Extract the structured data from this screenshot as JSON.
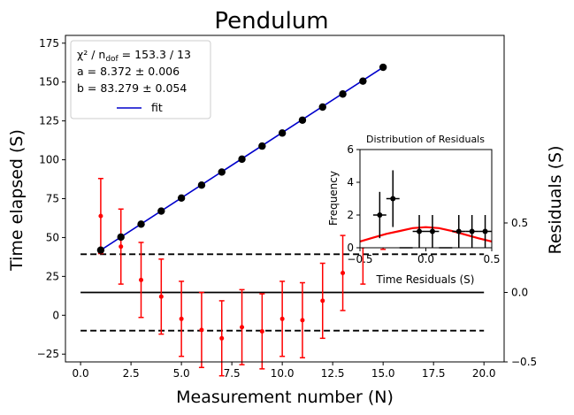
{
  "chart_data": [
    {
      "type": "scatter",
      "title": "Pendulum",
      "xlabel": "Measurement number (N)",
      "ylabel": "Time elapsed (S)",
      "xlim": [
        -0.75,
        21.0
      ],
      "ylim": [
        -30,
        180
      ],
      "xticks": [
        0.0,
        2.5,
        5.0,
        7.5,
        10.0,
        12.5,
        15.0,
        17.5,
        20.0
      ],
      "xtick_labels": [
        "0.0",
        "2.5",
        "5.0",
        "7.5",
        "10.0",
        "12.5",
        "15.0",
        "17.5",
        "20.0"
      ],
      "yticks": [
        -25,
        0,
        25,
        50,
        75,
        100,
        125,
        150,
        175
      ],
      "ytick_labels": [
        "−25",
        "0",
        "25",
        "50",
        "75",
        "100",
        "125",
        "150",
        "175"
      ],
      "grid": false,
      "series": [
        {
          "kind": "points",
          "color": "#000000",
          "x": [
            1,
            2,
            3,
            4,
            5,
            6,
            7,
            8,
            9,
            10,
            11,
            12,
            13,
            14,
            15
          ],
          "y": [
            41.9,
            50.3,
            58.6,
            67.0,
            75.4,
            83.7,
            92.1,
            100.4,
            108.8,
            117.2,
            125.5,
            133.9,
            142.3,
            150.6,
            159.5
          ]
        },
        {
          "name": "fit",
          "kind": "line",
          "color": "#0000cc",
          "x": [
            1,
            15
          ],
          "y": [
            41.9,
            159.5
          ]
        }
      ],
      "legend": {
        "placement": "top-left",
        "stats_chi": "χ² / n",
        "stats_chi_sub": "dof",
        "stats_chi_value": " = 153.3 / 13",
        "stats_a": "a = 8.372 ± 0.006",
        "stats_b": "b = 83.279 ± 0.054",
        "fit_label": "fit"
      }
    },
    {
      "type": "scatter",
      "name": "residuals",
      "ylabel": "Residuals (S)",
      "ylim": [
        -0.5,
        1.85
      ],
      "yticks": [
        -0.5,
        0.0,
        0.5
      ],
      "ytick_labels": [
        "−0.5",
        "0.0",
        "0.5"
      ],
      "x": [
        1,
        2,
        3,
        4,
        5,
        6,
        7,
        8,
        9,
        10,
        11,
        12,
        13,
        14,
        15
      ],
      "y": [
        0.55,
        0.33,
        0.09,
        -0.03,
        -0.19,
        -0.27,
        -0.33,
        -0.25,
        -0.28,
        -0.19,
        -0.2,
        -0.06,
        0.14,
        0.33,
        0.58
      ],
      "yerr": 0.27,
      "color": "#ff0000",
      "reference_lines": [
        {
          "y": 0.0,
          "style": "solid"
        },
        {
          "y": 0.275,
          "style": "dashed"
        },
        {
          "y": -0.275,
          "style": "dashed"
        }
      ]
    },
    {
      "type": "scatter",
      "title": "Distribution of Residuals",
      "xlabel": "Time Residuals (S)",
      "ylabel": "Frequency",
      "xlim": [
        -0.5,
        0.5
      ],
      "ylim": [
        0,
        6
      ],
      "xticks": [
        -0.5,
        0.0,
        0.5
      ],
      "xtick_labels": [
        "−0.5",
        "0.0",
        "0.5"
      ],
      "yticks": [
        0,
        2,
        4,
        6
      ],
      "ytick_labels": [
        "0",
        "2",
        "4",
        "6"
      ],
      "histogram_points": {
        "x": [
          -0.35,
          -0.25,
          -0.15,
          -0.05,
          0.05,
          0.15,
          0.25,
          0.35,
          0.45
        ],
        "y": [
          2,
          3,
          0,
          1,
          1,
          0,
          1,
          1,
          1
        ],
        "xerr": 0.05,
        "color": "#000000"
      },
      "gaussian": {
        "color": "#ff0000",
        "x": [
          -0.5,
          -0.4,
          -0.3,
          -0.2,
          -0.1,
          0.0,
          0.1,
          0.2,
          0.3,
          0.4,
          0.5
        ],
        "y": [
          0.38,
          0.62,
          0.85,
          1.02,
          1.2,
          1.26,
          1.2,
          1.02,
          0.8,
          0.58,
          0.38
        ]
      }
    }
  ]
}
